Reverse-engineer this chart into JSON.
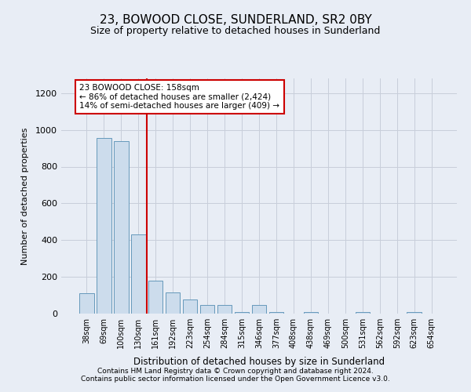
{
  "title": "23, BOWOOD CLOSE, SUNDERLAND, SR2 0BY",
  "subtitle": "Size of property relative to detached houses in Sunderland",
  "xlabel": "Distribution of detached houses by size in Sunderland",
  "ylabel": "Number of detached properties",
  "categories": [
    "38sqm",
    "69sqm",
    "100sqm",
    "130sqm",
    "161sqm",
    "192sqm",
    "223sqm",
    "254sqm",
    "284sqm",
    "315sqm",
    "346sqm",
    "377sqm",
    "408sqm",
    "438sqm",
    "469sqm",
    "500sqm",
    "531sqm",
    "562sqm",
    "592sqm",
    "623sqm",
    "654sqm"
  ],
  "values": [
    113,
    955,
    940,
    430,
    180,
    115,
    75,
    45,
    45,
    10,
    45,
    10,
    0,
    10,
    0,
    0,
    10,
    0,
    0,
    10,
    0
  ],
  "bar_color": "#ccdcec",
  "bar_edge_color": "#6699bb",
  "red_line_x": 3.5,
  "annotation_line1": "23 BOWOOD CLOSE: 158sqm",
  "annotation_line2": "← 86% of detached houses are smaller (2,424)",
  "annotation_line3": "14% of semi-detached houses are larger (409) →",
  "annotation_box_facecolor": "white",
  "annotation_box_edgecolor": "#cc0000",
  "ylim": [
    0,
    1280
  ],
  "yticks": [
    0,
    200,
    400,
    600,
    800,
    1000,
    1200
  ],
  "footer1": "Contains HM Land Registry data © Crown copyright and database right 2024.",
  "footer2": "Contains public sector information licensed under the Open Government Licence v3.0.",
  "outer_bg": "#e8edf5",
  "plot_bg": "#e8edf5",
  "grid_color": "#c8ceda"
}
